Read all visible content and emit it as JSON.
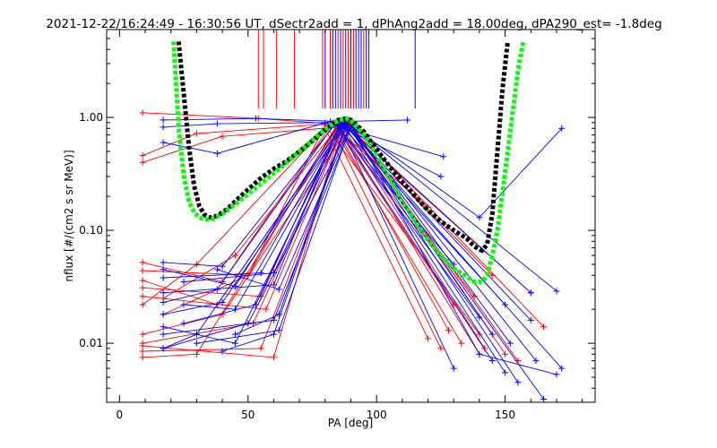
{
  "chart_data": {
    "type": "line",
    "title": "2021-12-22/16:24:49 - 16:30:56 UT, dSectr2add = 1, dPhAng2add = 18.00deg, dPA290_est=  -1.8deg",
    "xlabel": "PA [deg]",
    "ylabel": "nflux [#/(cm2 s sr MeV)]",
    "xlim": [
      -5,
      185
    ],
    "ylim": [
      0.003,
      6.0
    ],
    "yscale": "log",
    "xticks": [
      "0",
      "50",
      "100",
      "150"
    ],
    "xtick_values": [
      0,
      50,
      100,
      150
    ],
    "yticks": [
      "1.00",
      "0.10",
      "0.01"
    ],
    "ytick_values": [
      1.0,
      0.1,
      0.01
    ],
    "grid": false,
    "legend": "none",
    "colors": {
      "red": "#ff0000",
      "blue": "#0000ff",
      "black": "#000000",
      "green": "#00ff00",
      "axis": "#000000"
    },
    "vertical_markers": {
      "red": [
        54,
        56,
        61,
        68,
        79,
        82,
        85,
        87,
        89,
        91,
        95
      ],
      "blue": [
        80,
        83,
        84,
        86,
        88,
        90,
        92,
        93,
        94,
        96,
        97,
        115
      ],
      "y_from": 1.2,
      "y_to": 6.0
    },
    "series": [
      {
        "name": "",
        "color": "red",
        "x": [
          9,
          54,
          88,
          160
        ],
        "y": [
          1.1,
          0.98,
          0.86,
          0.028
        ]
      },
      {
        "name": "",
        "color": "red",
        "x": [
          9,
          30,
          82,
          120
        ],
        "y": [
          0.46,
          0.72,
          0.88,
          0.16
        ]
      },
      {
        "name": "",
        "color": "red",
        "x": [
          9,
          40,
          85,
          118
        ],
        "y": [
          0.4,
          0.68,
          0.82,
          0.09
        ]
      },
      {
        "name": "",
        "color": "red",
        "x": [
          9,
          40,
          83,
          130
        ],
        "y": [
          0.052,
          0.035,
          0.9,
          0.022
        ]
      },
      {
        "name": "",
        "color": "red",
        "x": [
          9,
          50,
          80,
          140
        ],
        "y": [
          0.044,
          0.04,
          0.85,
          0.012
        ]
      },
      {
        "name": "",
        "color": "red",
        "x": [
          9,
          38,
          84,
          125
        ],
        "y": [
          0.036,
          0.022,
          0.7,
          0.009
        ]
      },
      {
        "name": "",
        "color": "red",
        "x": [
          9,
          55,
          86,
          145
        ],
        "y": [
          0.031,
          0.026,
          0.92,
          0.04
        ]
      },
      {
        "name": "",
        "color": "red",
        "x": [
          9,
          57,
          88,
          155
        ],
        "y": [
          0.026,
          0.02,
          0.95,
          0.007
        ]
      },
      {
        "name": "",
        "color": "red",
        "x": [
          9,
          30,
          80,
          120
        ],
        "y": [
          0.022,
          0.05,
          0.8,
          0.011
        ]
      },
      {
        "name": "",
        "color": "red",
        "x": [
          9,
          40,
          90,
          150
        ],
        "y": [
          0.012,
          0.018,
          0.88,
          0.008
        ]
      },
      {
        "name": "",
        "color": "red",
        "x": [
          9,
          52,
          87,
          138
        ],
        "y": [
          0.01,
          0.015,
          0.85,
          0.026
        ]
      },
      {
        "name": "",
        "color": "red",
        "x": [
          9,
          30,
          84,
          133
        ],
        "y": [
          0.0075,
          0.008,
          0.75,
          0.01
        ]
      },
      {
        "name": "",
        "color": "red",
        "x": [
          9,
          55,
          89,
          165
        ],
        "y": [
          0.0085,
          0.009,
          0.9,
          0.014
        ]
      },
      {
        "name": "",
        "color": "red",
        "x": [
          9,
          60,
          86,
          140
        ],
        "y": [
          0.0095,
          0.0075,
          0.8,
          0.008
        ]
      },
      {
        "name": "",
        "color": "red",
        "x": [
          17,
          50,
          84,
          128
        ],
        "y": [
          0.018,
          0.04,
          0.82,
          0.013
        ]
      },
      {
        "name": "",
        "color": "red",
        "x": [
          17,
          45,
          86,
          142
        ],
        "y": [
          0.025,
          0.06,
          0.88,
          0.009
        ]
      },
      {
        "name": "",
        "color": "blue",
        "x": [
          17,
          53,
          85,
          112
        ],
        "y": [
          0.95,
          0.98,
          0.92,
          0.95
        ]
      },
      {
        "name": "",
        "color": "blue",
        "x": [
          17,
          38,
          80,
          126
        ],
        "y": [
          0.82,
          0.88,
          0.9,
          0.45
        ]
      },
      {
        "name": "",
        "color": "blue",
        "x": [
          17,
          38,
          82,
          125
        ],
        "y": [
          0.6,
          0.48,
          0.92,
          0.3
        ]
      },
      {
        "name": "",
        "color": "blue",
        "x": [
          17,
          40,
          84,
          130
        ],
        "y": [
          0.052,
          0.048,
          0.88,
          0.05
        ]
      },
      {
        "name": "",
        "color": "blue",
        "x": [
          17,
          45,
          86,
          160
        ],
        "y": [
          0.045,
          0.032,
          0.92,
          0.028
        ]
      },
      {
        "name": "",
        "color": "blue",
        "x": [
          17,
          40,
          88,
          145
        ],
        "y": [
          0.018,
          0.023,
          0.9,
          0.012
        ]
      },
      {
        "name": "",
        "color": "blue",
        "x": [
          17,
          50,
          90,
          152
        ],
        "y": [
          0.009,
          0.015,
          0.85,
          0.01
        ]
      },
      {
        "name": "",
        "color": "blue",
        "x": [
          17,
          30,
          86,
          130
        ],
        "y": [
          0.009,
          0.012,
          0.82,
          0.006
        ]
      },
      {
        "name": "",
        "color": "blue",
        "x": [
          17,
          45,
          87,
          150
        ],
        "y": [
          0.014,
          0.01,
          0.88,
          0.0055
        ]
      },
      {
        "name": "",
        "color": "blue",
        "x": [
          17,
          38,
          84,
          140
        ],
        "y": [
          0.023,
          0.03,
          0.9,
          0.017
        ]
      },
      {
        "name": "",
        "color": "blue",
        "x": [
          17,
          55,
          88,
          170
        ],
        "y": [
          0.038,
          0.042,
          0.92,
          0.029
        ]
      },
      {
        "name": "",
        "color": "blue",
        "x": [
          17,
          60,
          85,
          145
        ],
        "y": [
          0.028,
          0.033,
          0.8,
          0.007
        ]
      },
      {
        "name": "",
        "color": "blue",
        "x": [
          25,
          53,
          86,
          150
        ],
        "y": [
          0.015,
          0.022,
          0.86,
          0.022
        ]
      },
      {
        "name": "",
        "color": "blue",
        "x": [
          25,
          45,
          87,
          160
        ],
        "y": [
          0.022,
          0.02,
          0.9,
          0.016
        ]
      },
      {
        "name": "",
        "color": "blue",
        "x": [
          30,
          62,
          90,
          140,
          170
        ],
        "y": [
          0.01,
          0.013,
          0.85,
          0.008,
          0.0053
        ]
      },
      {
        "name": "",
        "color": "blue",
        "x": [
          38,
          62,
          90,
          140,
          172
        ],
        "y": [
          0.045,
          0.03,
          0.85,
          0.13,
          0.8
        ]
      },
      {
        "name": "",
        "color": "blue",
        "x": [
          25,
          60,
          88,
          155
        ],
        "y": [
          0.035,
          0.042,
          0.9,
          0.0045
        ]
      },
      {
        "name": "",
        "color": "blue",
        "x": [
          45,
          62,
          88,
          165
        ],
        "y": [
          0.012,
          0.018,
          0.88,
          0.0032
        ]
      },
      {
        "name": "",
        "color": "blue",
        "x": [
          17,
          60,
          90,
          162
        ],
        "y": [
          0.012,
          0.016,
          0.82,
          0.007
        ]
      },
      {
        "name": "",
        "color": "blue",
        "x": [
          40,
          60,
          88,
          172
        ],
        "y": [
          0.0085,
          0.012,
          0.84,
          0.006
        ]
      }
    ],
    "fit_curves": [
      {
        "name": "",
        "color": "black",
        "x": [
          23,
          25,
          27,
          29,
          31,
          33,
          35,
          38,
          42,
          46,
          50,
          55,
          60,
          65,
          70,
          75,
          80,
          85,
          88,
          90,
          95,
          100,
          105,
          110,
          115,
          120,
          125,
          130,
          135,
          138,
          141,
          143,
          145,
          147,
          149,
          151
        ],
        "y": [
          4.7,
          1.6,
          0.55,
          0.25,
          0.165,
          0.138,
          0.13,
          0.134,
          0.155,
          0.19,
          0.23,
          0.29,
          0.35,
          0.41,
          0.5,
          0.62,
          0.78,
          0.95,
          0.98,
          0.95,
          0.75,
          0.52,
          0.37,
          0.27,
          0.2,
          0.15,
          0.12,
          0.1,
          0.085,
          0.072,
          0.066,
          0.075,
          0.14,
          0.5,
          1.8,
          4.7
        ]
      },
      {
        "name": "",
        "color": "green",
        "x": [
          21,
          23,
          25,
          27,
          29,
          31,
          33,
          36,
          40,
          45,
          50,
          55,
          60,
          65,
          70,
          75,
          80,
          85,
          88,
          90,
          95,
          100,
          105,
          110,
          115,
          120,
          125,
          130,
          135,
          138,
          141,
          143,
          145,
          147,
          149,
          152,
          155,
          157
        ],
        "y": [
          4.7,
          0.8,
          0.3,
          0.18,
          0.145,
          0.13,
          0.125,
          0.126,
          0.14,
          0.17,
          0.21,
          0.26,
          0.32,
          0.4,
          0.5,
          0.63,
          0.79,
          0.94,
          0.98,
          0.95,
          0.71,
          0.46,
          0.29,
          0.18,
          0.12,
          0.082,
          0.06,
          0.046,
          0.039,
          0.035,
          0.035,
          0.04,
          0.06,
          0.1,
          0.22,
          0.75,
          2.6,
          4.7
        ]
      }
    ]
  }
}
